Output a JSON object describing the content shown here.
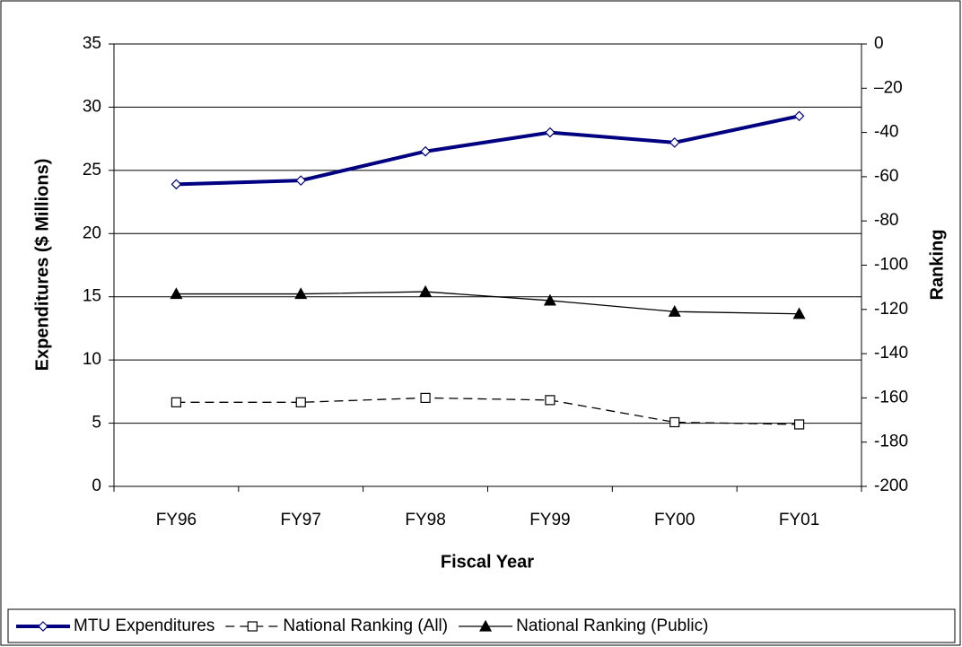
{
  "chart_data": {
    "type": "line",
    "x_label": "Fiscal Year",
    "y_label": "Expenditures ($ Millions)",
    "y2_label": "Ranking",
    "categories": [
      "FY96",
      "FY97",
      "FY98",
      "FY99",
      "FY00",
      "FY01"
    ],
    "series": [
      {
        "name": "MTU Expenditures",
        "color": "#000080",
        "marker": "diamond",
        "dashed": false,
        "width": 4,
        "values": [
          23.9,
          24.2,
          26.5,
          28.0,
          27.2,
          29.3
        ]
      },
      {
        "name": "National Ranking (All)",
        "color": "#000000",
        "marker": "square",
        "dashed": true,
        "width": 1.3,
        "axis": "y2",
        "values": [
          -162,
          -162,
          -160,
          -161,
          -171,
          -172
        ]
      },
      {
        "name": "National Ranking (Public)",
        "color": "#000000",
        "marker": "triangle",
        "dashed": false,
        "width": 1.3,
        "axis": "y2",
        "values": [
          -113,
          -113,
          -112,
          -116,
          -121,
          -122
        ]
      }
    ],
    "ylim": [
      0,
      35
    ],
    "yticks": [
      0,
      5,
      10,
      15,
      20,
      25,
      30,
      35
    ],
    "y2lim": [
      -200,
      0
    ],
    "y2ticks": [
      {
        "value": -200,
        "label": "-200"
      },
      {
        "value": -180,
        "label": "-180"
      },
      {
        "value": -160,
        "label": "-160"
      },
      {
        "value": -140,
        "label": "-140"
      },
      {
        "value": -120,
        "label": "-120"
      },
      {
        "value": -100,
        "label": "-100"
      },
      {
        "value": -80,
        "label": "-80"
      },
      {
        "value": -60,
        "label": "-60"
      },
      {
        "value": -40,
        "label": "-40"
      },
      {
        "value": -20,
        "label": "–20"
      },
      0
    ],
    "grid": true,
    "legend": "bottom"
  }
}
